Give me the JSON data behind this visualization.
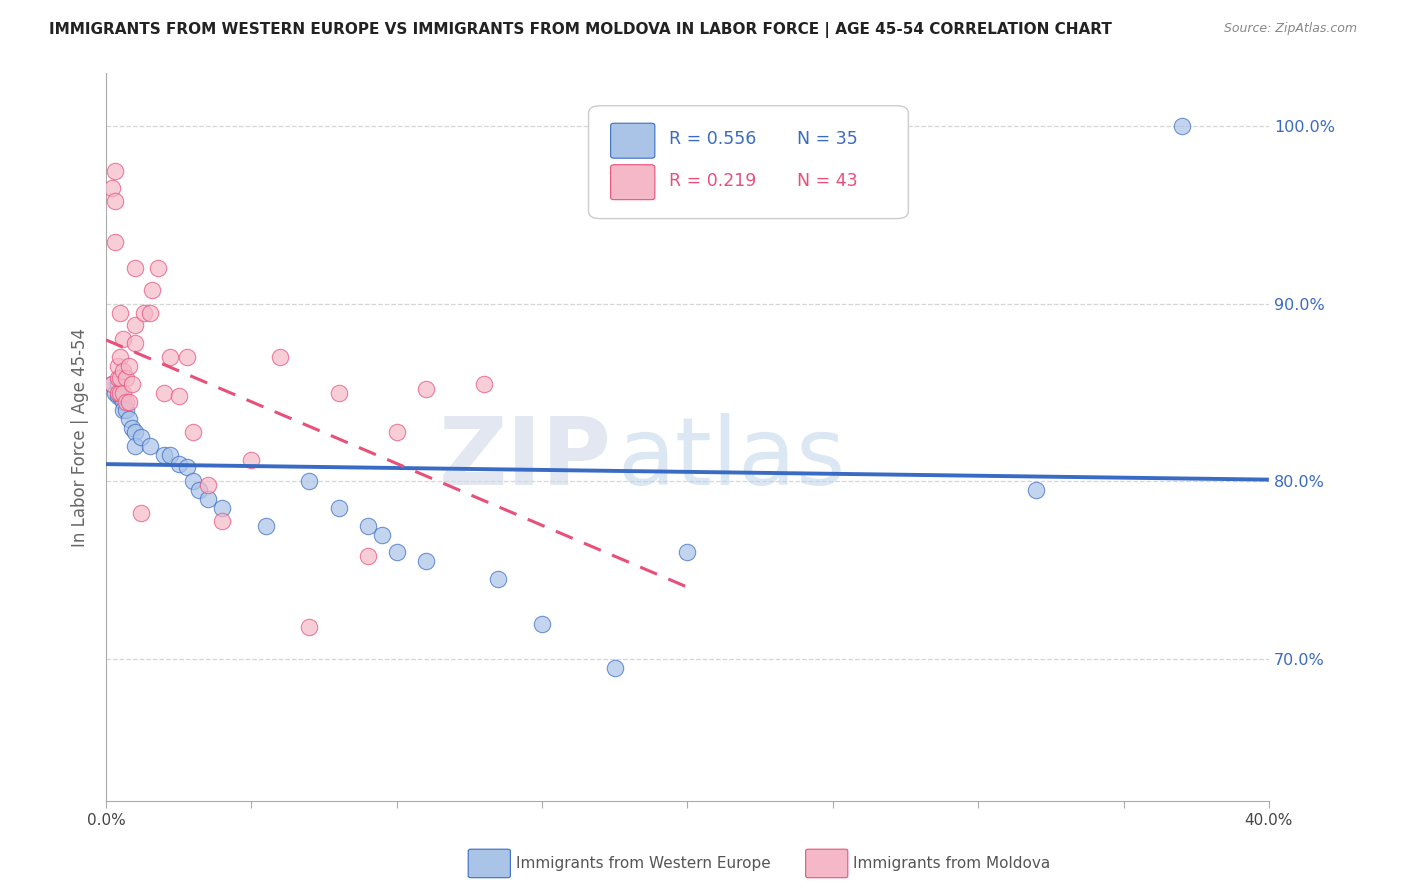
{
  "title": "IMMIGRANTS FROM WESTERN EUROPE VS IMMIGRANTS FROM MOLDOVA IN LABOR FORCE | AGE 45-54 CORRELATION CHART",
  "source": "Source: ZipAtlas.com",
  "ylabel": "In Labor Force | Age 45-54",
  "xlim": [
    0.0,
    0.4
  ],
  "ylim": [
    0.62,
    1.03
  ],
  "xticks": [
    0.0,
    0.05,
    0.1,
    0.15,
    0.2,
    0.25,
    0.3,
    0.35,
    0.4
  ],
  "xticklabels": [
    "0.0%",
    "",
    "",
    "",
    "",
    "",
    "",
    "",
    "40.0%"
  ],
  "ytick_positions": [
    0.7,
    0.8,
    0.9,
    1.0
  ],
  "yticklabels_right": [
    "70.0%",
    "80.0%",
    "90.0%",
    "100.0%"
  ],
  "legend_blue_R": "R = 0.556",
  "legend_blue_N": "N = 35",
  "legend_pink_R": "R = 0.219",
  "legend_pink_N": "N = 43",
  "blue_color": "#aac4e8",
  "pink_color": "#f4b8c8",
  "blue_line_color": "#3a6bc4",
  "pink_line_color": "#e8507a",
  "watermark_zip": "ZIP",
  "watermark_atlas": "atlas",
  "background_color": "#ffffff",
  "grid_color": "#cccccc",
  "blue_x": [
    0.002,
    0.003,
    0.004,
    0.004,
    0.005,
    0.006,
    0.006,
    0.007,
    0.008,
    0.009,
    0.01,
    0.01,
    0.012,
    0.015,
    0.02,
    0.022,
    0.025,
    0.028,
    0.03,
    0.032,
    0.035,
    0.04,
    0.055,
    0.07,
    0.08,
    0.09,
    0.095,
    0.1,
    0.11,
    0.135,
    0.15,
    0.175,
    0.2,
    0.32,
    0.37
  ],
  "blue_y": [
    0.855,
    0.85,
    0.855,
    0.848,
    0.848,
    0.845,
    0.84,
    0.84,
    0.835,
    0.83,
    0.828,
    0.82,
    0.825,
    0.82,
    0.815,
    0.815,
    0.81,
    0.808,
    0.8,
    0.795,
    0.79,
    0.785,
    0.775,
    0.8,
    0.785,
    0.775,
    0.77,
    0.76,
    0.755,
    0.745,
    0.72,
    0.695,
    0.76,
    0.795,
    1.0
  ],
  "pink_x": [
    0.002,
    0.002,
    0.003,
    0.003,
    0.003,
    0.004,
    0.004,
    0.004,
    0.005,
    0.005,
    0.005,
    0.005,
    0.006,
    0.006,
    0.006,
    0.007,
    0.007,
    0.008,
    0.008,
    0.009,
    0.01,
    0.01,
    0.01,
    0.012,
    0.013,
    0.015,
    0.016,
    0.018,
    0.02,
    0.022,
    0.025,
    0.028,
    0.03,
    0.035,
    0.04,
    0.05,
    0.06,
    0.07,
    0.08,
    0.09,
    0.1,
    0.11,
    0.13
  ],
  "pink_y": [
    0.855,
    0.965,
    0.935,
    0.958,
    0.975,
    0.85,
    0.858,
    0.865,
    0.85,
    0.858,
    0.87,
    0.895,
    0.85,
    0.862,
    0.88,
    0.845,
    0.858,
    0.845,
    0.865,
    0.855,
    0.878,
    0.888,
    0.92,
    0.782,
    0.895,
    0.895,
    0.908,
    0.92,
    0.85,
    0.87,
    0.848,
    0.87,
    0.828,
    0.798,
    0.778,
    0.812,
    0.87,
    0.718,
    0.85,
    0.758,
    0.828,
    0.852,
    0.855
  ]
}
